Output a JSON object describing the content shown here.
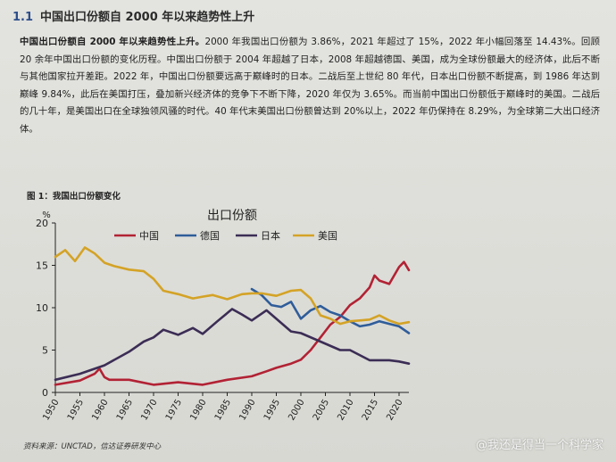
{
  "section": {
    "number": "1.1",
    "title": "中国出口份额自 2000 年以来趋势性上升"
  },
  "paragraph": {
    "lead": "中国出口份额自 2000 年以来趋势性上升。",
    "body": "2000 年我国出口份额为 3.86%，2021 年超过了 15%，2022 年小幅回落至 14.43%。回顾 20 余年中国出口份额的变化历程。中国出口份额于 2004 年超越了日本，2008 年超越德国、美国，成为全球份额最大的经济体，此后不断与其他国家拉开差距。2022 年，中国出口份额要远高于巅峰时的日本。二战后至上世纪 80 年代，日本出口份额不断提高，到 1986 年达到巅峰 9.84%，此后在美国打压，叠加新兴经济体的竞争下不断下降，2020 年仅为 3.65%。而当前中国出口份额低于巅峰时的美国。二战后的几十年，是美国出口在全球独领风骚的时代。40 年代末美国出口份额曾达到 20%以上，2022 年仍保持在 8.29%，为全球第二大出口经济体。"
  },
  "figure_title": "图 1：我国出口份额变化",
  "source": "资料来源：UNCTAD，信达证券研发中心",
  "watermark": "@我还是得当一个科学家",
  "chart_data": {
    "type": "line",
    "title": "出口份额",
    "ylabel": "%",
    "xlim": [
      1950,
      2022
    ],
    "ylim": [
      0,
      20
    ],
    "yticks": [
      0,
      5,
      10,
      15,
      20
    ],
    "xticks": [
      1950,
      1955,
      1960,
      1965,
      1970,
      1975,
      1980,
      1985,
      1990,
      1995,
      2000,
      2005,
      2010,
      2015,
      2020
    ],
    "grid": false,
    "legend": "top",
    "series": [
      {
        "name": "中国",
        "color": "#b22234",
        "x": [
          1950,
          1955,
          1958,
          1959,
          1960,
          1961,
          1965,
          1970,
          1975,
          1980,
          1985,
          1990,
          1993,
          1995,
          1998,
          2000,
          2002,
          2004,
          2006,
          2008,
          2010,
          2012,
          2014,
          2015,
          2016,
          2018,
          2020,
          2021,
          2022
        ],
        "y": [
          0.9,
          1.4,
          2.2,
          2.8,
          1.8,
          1.5,
          1.5,
          0.9,
          1.2,
          0.9,
          1.5,
          1.9,
          2.5,
          2.9,
          3.4,
          3.86,
          5.0,
          6.5,
          8.0,
          8.9,
          10.3,
          11.1,
          12.4,
          13.8,
          13.2,
          12.8,
          14.8,
          15.4,
          14.43
        ]
      },
      {
        "name": "德国",
        "color": "#2f5d9a",
        "x": [
          1990,
          1992,
          1994,
          1996,
          1998,
          2000,
          2002,
          2004,
          2006,
          2008,
          2010,
          2012,
          2014,
          2016,
          2018,
          2020,
          2022
        ],
        "y": [
          12.2,
          11.5,
          10.3,
          10.1,
          10.7,
          8.7,
          9.7,
          10.2,
          9.5,
          9.1,
          8.4,
          7.8,
          8.0,
          8.4,
          8.1,
          7.8,
          7.0
        ]
      },
      {
        "name": "日本",
        "color": "#3b2d55",
        "x": [
          1950,
          1955,
          1960,
          1965,
          1968,
          1970,
          1972,
          1975,
          1978,
          1980,
          1983,
          1986,
          1988,
          1990,
          1993,
          1995,
          1998,
          2000,
          2004,
          2008,
          2010,
          2014,
          2018,
          2020,
          2022
        ],
        "y": [
          1.5,
          2.2,
          3.2,
          4.8,
          6.0,
          6.5,
          7.4,
          6.8,
          7.6,
          6.9,
          8.4,
          9.84,
          9.2,
          8.5,
          9.7,
          8.7,
          7.2,
          7.0,
          6.0,
          5.0,
          5.0,
          3.8,
          3.8,
          3.65,
          3.4
        ]
      },
      {
        "name": "美国",
        "color": "#d4a326",
        "x": [
          1950,
          1952,
          1954,
          1956,
          1958,
          1960,
          1962,
          1965,
          1968,
          1970,
          1972,
          1975,
          1978,
          1980,
          1982,
          1985,
          1988,
          1990,
          1992,
          1995,
          1998,
          2000,
          2002,
          2004,
          2006,
          2008,
          2010,
          2012,
          2014,
          2016,
          2018,
          2020,
          2022
        ],
        "y": [
          16.0,
          16.8,
          15.5,
          17.1,
          16.4,
          15.3,
          14.9,
          14.5,
          14.3,
          13.4,
          12.0,
          11.6,
          11.1,
          11.3,
          11.5,
          11.0,
          11.6,
          11.7,
          11.7,
          11.4,
          12.0,
          12.1,
          11.1,
          9.1,
          8.7,
          8.1,
          8.4,
          8.5,
          8.6,
          9.1,
          8.5,
          8.1,
          8.29
        ]
      }
    ]
  }
}
